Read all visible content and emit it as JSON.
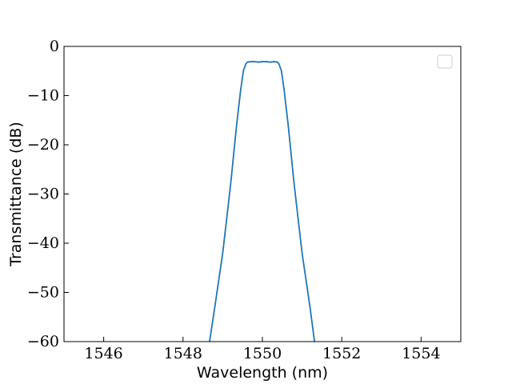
{
  "chart_data": {
    "type": "line",
    "title": "",
    "xlabel": "Wavelength (nm)",
    "ylabel": "Transmittance (dB)",
    "xlim": [
      1545.0,
      1555.0
    ],
    "ylim": [
      -60,
      0
    ],
    "x_ticks": [
      1546,
      1548,
      1550,
      1552,
      1554
    ],
    "x_tick_labels": [
      "1546",
      "1548",
      "1550",
      "1552",
      "1554"
    ],
    "y_ticks": [
      0,
      -10,
      -20,
      -30,
      -40,
      -50,
      -60
    ],
    "y_tick_labels": [
      "0",
      "−10",
      "−20",
      "−30",
      "−40",
      "−50",
      "−60"
    ],
    "grid": false,
    "legend": {
      "placement": "top-right",
      "entries": []
    },
    "series": [
      {
        "color": "#1f77b4",
        "x": [
          1548.65,
          1548.8,
          1549.0,
          1549.2,
          1549.35,
          1549.45,
          1549.52,
          1549.58,
          1549.62,
          1549.7,
          1549.8,
          1549.9,
          1550.0,
          1550.1,
          1550.2,
          1550.3,
          1550.38,
          1550.42,
          1550.48,
          1550.55,
          1550.65,
          1550.8,
          1551.0,
          1551.2,
          1551.33
        ],
        "y": [
          -61,
          -53,
          -42,
          -28,
          -16,
          -9,
          -5,
          -3.6,
          -3.2,
          -3.1,
          -3.1,
          -3.2,
          -3.1,
          -3.1,
          -3.2,
          -3.1,
          -3.2,
          -3.6,
          -5,
          -9,
          -16,
          -28,
          -42,
          -53,
          -61
        ]
      }
    ]
  }
}
